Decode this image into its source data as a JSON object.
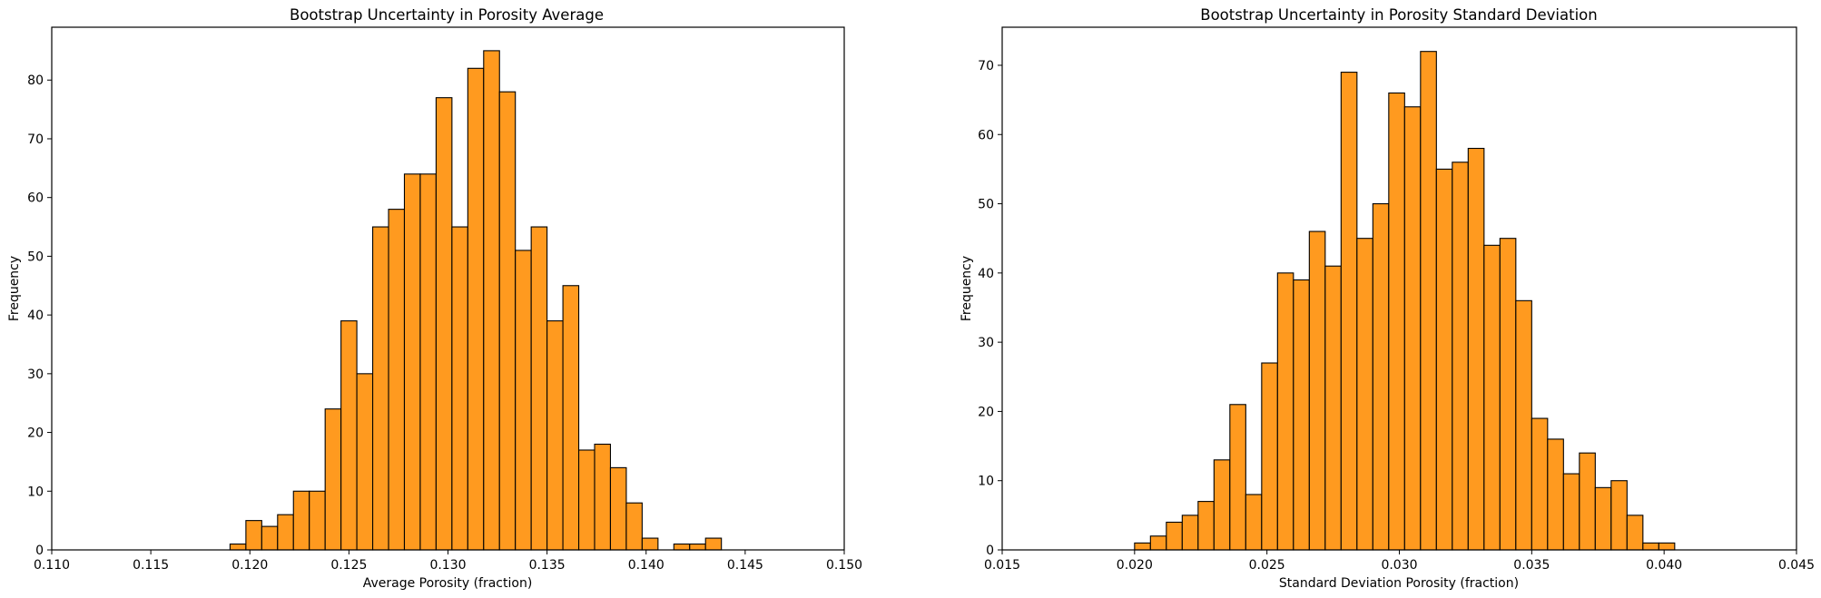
{
  "chart_data": [
    {
      "type": "bar",
      "title": "Bootstrap Uncertainty in Porosity Average",
      "xlabel": "Average Porosity (fraction)",
      "ylabel": "Frequency",
      "xlim": [
        0.11,
        0.15
      ],
      "ylim": [
        0,
        89
      ],
      "xticks": [
        "0.110",
        "0.115",
        "0.120",
        "0.125",
        "0.130",
        "0.135",
        "0.140",
        "0.145",
        "0.150"
      ],
      "yticks": [
        "0",
        "10",
        "20",
        "30",
        "40",
        "50",
        "60",
        "70",
        "80"
      ],
      "bin_start": 0.119,
      "bin_width": 0.0008,
      "values": [
        1,
        5,
        4,
        6,
        10,
        10,
        24,
        39,
        30,
        55,
        58,
        64,
        64,
        77,
        55,
        82,
        85,
        78,
        51,
        55,
        39,
        45,
        17,
        18,
        14,
        8,
        2,
        0,
        1,
        1,
        2
      ],
      "bar_color": "#FF9A1F",
      "edge_color": "#000000",
      "grid": false
    },
    {
      "type": "bar",
      "title": "Bootstrap Uncertainty in Porosity Standard Deviation",
      "xlabel": "Standard Deviation Porosity (fraction)",
      "ylabel": "Frequency",
      "xlim": [
        0.015,
        0.045
      ],
      "ylim": [
        0,
        75.5
      ],
      "xticks": [
        "0.015",
        "0.020",
        "0.025",
        "0.030",
        "0.035",
        "0.040",
        "0.045"
      ],
      "yticks": [
        "0",
        "10",
        "20",
        "30",
        "40",
        "50",
        "60",
        "70"
      ],
      "bin_start": 0.02,
      "bin_width": 0.0006,
      "values": [
        1,
        2,
        4,
        5,
        7,
        13,
        21,
        8,
        27,
        40,
        39,
        46,
        41,
        69,
        45,
        50,
        66,
        64,
        72,
        55,
        56,
        58,
        44,
        45,
        36,
        19,
        16,
        11,
        14,
        9,
        10,
        5,
        1,
        1
      ],
      "bar_color": "#FF9A1F",
      "edge_color": "#000000",
      "grid": false
    }
  ]
}
